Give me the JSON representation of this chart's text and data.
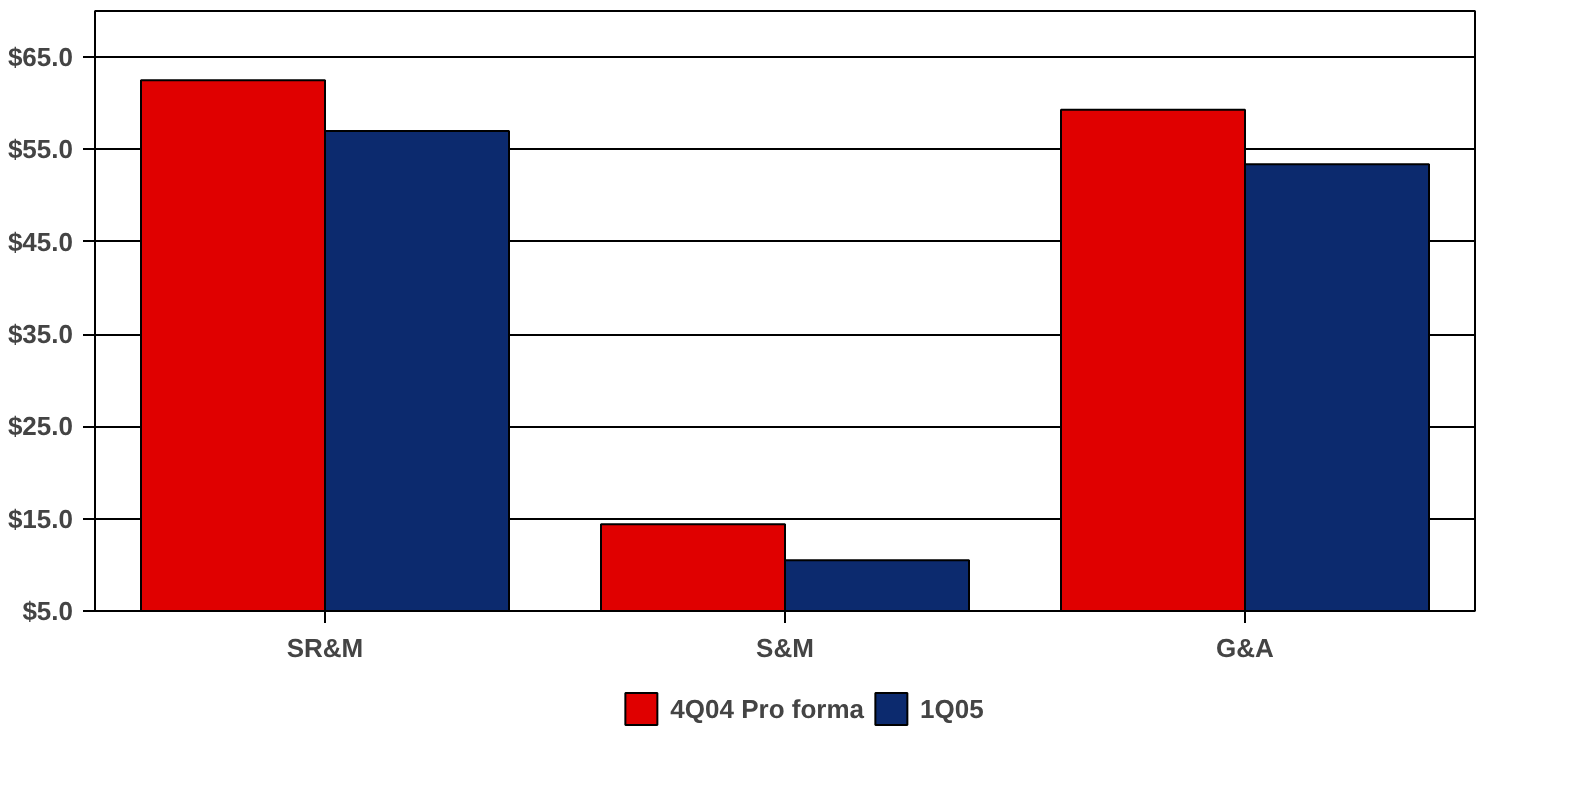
{
  "chart_data": {
    "type": "bar",
    "categories": [
      "SR&M",
      "S&M",
      "G&A"
    ],
    "series": [
      {
        "name": "4Q04 Pro forma",
        "color": "#e00000",
        "values": [
          62.5,
          14.4,
          59.3
        ]
      },
      {
        "name": "1Q05",
        "color": "#0c2a6e",
        "values": [
          57.0,
          10.5,
          53.4
        ]
      }
    ],
    "ylim": [
      5,
      70
    ],
    "yticks": [
      {
        "value": 5,
        "label": "$5.0"
      },
      {
        "value": 15,
        "label": "$15.0"
      },
      {
        "value": 25,
        "label": "$25.0"
      },
      {
        "value": 35,
        "label": "$35.0"
      },
      {
        "value": 45,
        "label": "$45.0"
      },
      {
        "value": 55,
        "label": "$55.0"
      },
      {
        "value": 65,
        "label": "$65.0"
      }
    ],
    "grid": "y",
    "legend": "bottom"
  }
}
